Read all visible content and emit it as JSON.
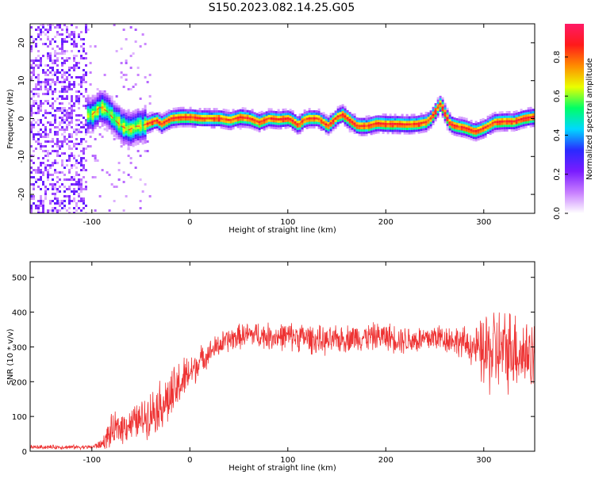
{
  "title": "S150.2023.082.14.25.G05",
  "colors": {
    "snr_line": "#ee3333",
    "spectrogram_ridge": "#ff2d2d",
    "colormap": [
      "#ffffff",
      "#c77dff",
      "#7a1cff",
      "#2a2aff",
      "#00d8ff",
      "#00ff66",
      "#eaff00",
      "#ff8c00",
      "#ff1a1a",
      "#ff1a66"
    ]
  },
  "chart_data": [
    {
      "type": "heatmap",
      "name": "spectrogram",
      "xlabel": "Height of straight line (km)",
      "ylabel": "Frequency (Hz)",
      "xlim": [
        -163,
        352
      ],
      "ylim": [
        -25,
        25
      ],
      "xticks": [
        -100,
        0,
        100,
        200,
        300
      ],
      "yticks": [
        -20,
        -10,
        0,
        10,
        20
      ],
      "colorbar": {
        "label": "Normalized spectral amplitude",
        "range": [
          0,
          0.97
        ],
        "ticks": [
          "0.0",
          "0.2",
          "0.4",
          "0.6",
          "0.8"
        ],
        "tick_values": [
          0,
          0.2,
          0.4,
          0.6,
          0.8
        ]
      },
      "noise_region_x": [
        -163,
        -105
      ],
      "ridge": {
        "x": [
          -100,
          -92,
          -85,
          -78,
          -70,
          -62,
          -55,
          -50,
          -45,
          -40,
          -35,
          -30,
          -20,
          -10,
          0,
          10,
          20,
          30,
          40,
          50,
          60,
          70,
          80,
          90,
          100,
          105,
          110,
          115,
          120,
          130,
          140,
          150,
          155,
          160,
          170,
          180,
          190,
          200,
          210,
          220,
          230,
          240,
          245,
          250,
          255,
          260,
          265,
          270,
          280,
          290,
          300,
          310,
          320,
          330,
          340,
          352
        ],
        "y": [
          1,
          3,
          2,
          0,
          -2,
          -3,
          -2,
          -2,
          -1.5,
          -1,
          -0.5,
          -1.5,
          0,
          0.3,
          0.3,
          0,
          0,
          0,
          -0.5,
          0.3,
          0,
          -1,
          0,
          -0.3,
          0,
          -0.8,
          -1.8,
          -0.5,
          0,
          0,
          -2,
          0.5,
          1,
          0,
          -2,
          -2,
          -1.3,
          -1.5,
          -1.5,
          -1.6,
          -1.5,
          -1,
          0,
          2,
          4,
          1,
          -1.5,
          -2,
          -2.5,
          -3.5,
          -2.5,
          -1,
          -0.8,
          -0.8,
          0,
          0.5
        ]
      }
    },
    {
      "type": "line",
      "name": "snr",
      "xlabel": "Height of straight line (km)",
      "ylabel": "SNR (10 * v/v)",
      "xlim": [
        -163,
        352
      ],
      "ylim": [
        0,
        545
      ],
      "xticks": [
        -100,
        0,
        100,
        200,
        300
      ],
      "yticks": [
        0,
        100,
        200,
        300,
        400,
        500
      ],
      "series": [
        {
          "x": [
            -163,
            -140,
            -120,
            -100,
            -90,
            -80,
            -70,
            -60,
            -50,
            -40,
            -30,
            -20,
            -10,
            0,
            5,
            10,
            15,
            20,
            30,
            40,
            50,
            60,
            70,
            80,
            90,
            100,
            110,
            120,
            130,
            140,
            150,
            160,
            170,
            180,
            190,
            200,
            210,
            220,
            230,
            240,
            250,
            260,
            270,
            280,
            290,
            295,
            300,
            310,
            320,
            330,
            340,
            352
          ],
          "values": [
            12,
            12,
            12,
            12,
            20,
            55,
            70,
            80,
            90,
            110,
            135,
            150,
            195,
            225,
            240,
            260,
            270,
            285,
            305,
            320,
            330,
            335,
            335,
            330,
            330,
            330,
            330,
            325,
            320,
            315,
            320,
            325,
            328,
            328,
            330,
            330,
            325,
            320,
            320,
            320,
            330,
            325,
            320,
            310,
            300,
            290,
            280,
            290,
            285,
            300,
            280,
            285
          ],
          "spread": [
            5,
            5,
            5,
            5,
            12,
            40,
            40,
            40,
            45,
            55,
            60,
            65,
            60,
            45,
            40,
            35,
            30,
            28,
            30,
            30,
            30,
            30,
            32,
            32,
            32,
            35,
            35,
            35,
            35,
            33,
            33,
            33,
            33,
            33,
            33,
            33,
            35,
            35,
            35,
            35,
            35,
            35,
            35,
            40,
            45,
            60,
            100,
            110,
            100,
            100,
            90,
            90
          ]
        }
      ]
    }
  ]
}
